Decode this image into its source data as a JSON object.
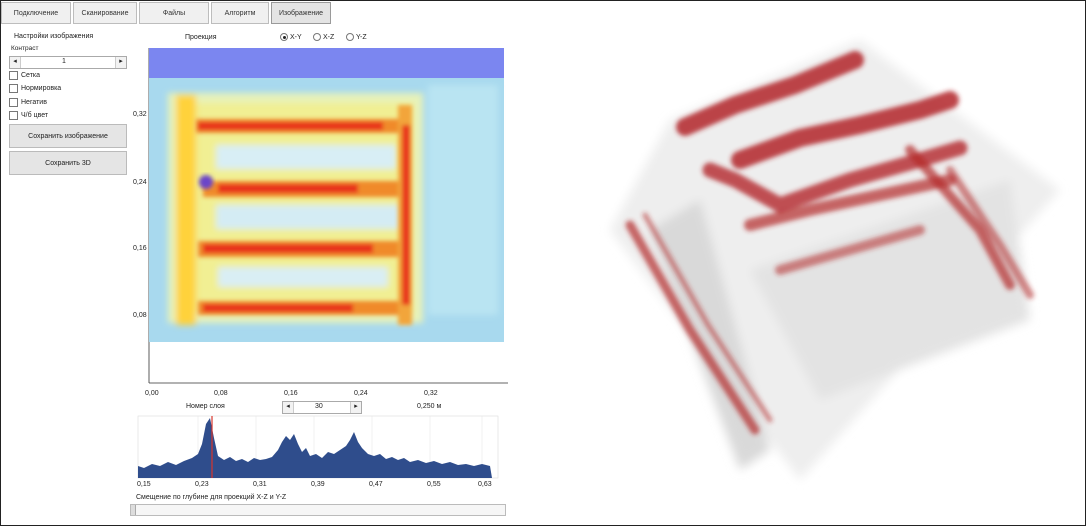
{
  "tabs": [
    {
      "label": "Подключение"
    },
    {
      "label": "Сканирование"
    },
    {
      "label": "Файлы"
    },
    {
      "label": "Алгоритм"
    },
    {
      "label": "Изображение",
      "active": true
    }
  ],
  "settings": {
    "title": "Настройки изображения",
    "contrast_label": "Контраст",
    "contrast_value": "1",
    "checkboxes": [
      {
        "label": "Сетка",
        "checked": false
      },
      {
        "label": "Нормировка",
        "checked": false
      },
      {
        "label": "Негатив",
        "checked": false
      },
      {
        "label": "Ч/б цвет",
        "checked": false
      }
    ],
    "save_image": "Сохранить изображение",
    "save_3d": "Сохранить 3D"
  },
  "projection": {
    "label": "Проекция",
    "options": [
      {
        "label": "X-Y",
        "selected": true
      },
      {
        "label": "X-Z",
        "selected": false
      },
      {
        "label": "Y-Z",
        "selected": false
      }
    ]
  },
  "main_plot": {
    "x_ticks": [
      "0,00",
      "0,08",
      "0,16",
      "0,24",
      "0,32"
    ],
    "y_ticks": [
      "0,32",
      "0,24",
      "0,16",
      "0,08"
    ]
  },
  "layer": {
    "label": "Номер слоя",
    "value": "30",
    "depth": "0,250 м",
    "left_arrow": "◂",
    "right_arrow": "▸"
  },
  "histogram": {
    "x_ticks": [
      "0,15",
      "0,23",
      "0,31",
      "0,39",
      "0,47",
      "0,55",
      "0,63"
    ],
    "marker_position": 0.25
  },
  "depth_offset_label": "Смещение по глубине для проекций X-Z и Y-Z",
  "colors": {
    "background_band": "#7b86f0",
    "hot": "#e8321a",
    "warm": "#ffd23a",
    "cool": "#8fd4ff",
    "histogram_fill": "#2f4d8c",
    "marker": "#d9362b",
    "voxel": "#b3262a"
  }
}
